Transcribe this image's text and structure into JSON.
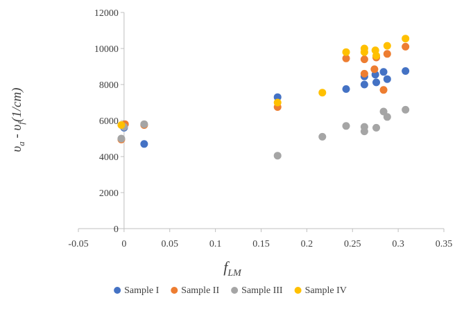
{
  "chart_data": {
    "type": "scatter",
    "title": "",
    "xlabel": {
      "main": "f",
      "sub": "LM"
    },
    "ylabel": {
      "p1": "υ",
      "p1sub": "a",
      "p2": " - υ",
      "p2sub": "f",
      "p3": "(1/cm)"
    },
    "xlim": [
      -0.05,
      0.35
    ],
    "ylim": [
      0,
      12000
    ],
    "xticks": [
      -0.05,
      0,
      0.05,
      0.1,
      0.15,
      0.2,
      0.25,
      0.3,
      0.35
    ],
    "xtick_labels": [
      "-0.05",
      "0",
      "0.05",
      "0.1",
      "0.15",
      "0.2",
      "0.25",
      "0.3",
      "0.35"
    ],
    "yticks": [
      0,
      2000,
      4000,
      6000,
      8000,
      10000,
      12000
    ],
    "ytick_labels": [
      "0",
      "2000",
      "4000",
      "6000",
      "8000",
      "10000",
      "12000"
    ],
    "grid": false,
    "legend_position": "bottom",
    "series": [
      {
        "name": "Sample I",
        "color": "#4472C4",
        "points": [
          [
            0.0,
            5600
          ],
          [
            0.022,
            4700
          ],
          [
            0.168,
            7300
          ],
          [
            0.243,
            7750
          ],
          [
            0.263,
            8450
          ],
          [
            0.263,
            8000
          ],
          [
            0.275,
            8550
          ],
          [
            0.276,
            8120
          ],
          [
            0.284,
            8700
          ],
          [
            0.288,
            8300
          ],
          [
            0.308,
            8750
          ]
        ]
      },
      {
        "name": "Sample II",
        "color": "#ED7D31",
        "points": [
          [
            -0.003,
            4950
          ],
          [
            0.001,
            5800
          ],
          [
            0.022,
            5750
          ],
          [
            0.168,
            6750
          ],
          [
            0.243,
            9450
          ],
          [
            0.263,
            9400
          ],
          [
            0.263,
            8600
          ],
          [
            0.274,
            8850
          ],
          [
            0.276,
            9500
          ],
          [
            0.284,
            7700
          ],
          [
            0.288,
            9700
          ],
          [
            0.308,
            10100
          ]
        ]
      },
      {
        "name": "Sample III",
        "color": "#A5A5A5",
        "points": [
          [
            -0.003,
            5000
          ],
          [
            0.0,
            5650
          ],
          [
            0.022,
            5800
          ],
          [
            0.168,
            4050
          ],
          [
            0.217,
            5100
          ],
          [
            0.243,
            5700
          ],
          [
            0.263,
            5650
          ],
          [
            0.263,
            5400
          ],
          [
            0.276,
            5600
          ],
          [
            0.284,
            6500
          ],
          [
            0.288,
            6200
          ],
          [
            0.308,
            6600
          ]
        ]
      },
      {
        "name": "Sample IV",
        "color": "#FFC000",
        "points": [
          [
            -0.003,
            5750
          ],
          [
            0.168,
            7000
          ],
          [
            0.217,
            7550
          ],
          [
            0.243,
            9800
          ],
          [
            0.263,
            10000
          ],
          [
            0.263,
            9800
          ],
          [
            0.275,
            9900
          ],
          [
            0.276,
            9600
          ],
          [
            0.288,
            10150
          ],
          [
            0.308,
            10550
          ]
        ]
      }
    ]
  }
}
